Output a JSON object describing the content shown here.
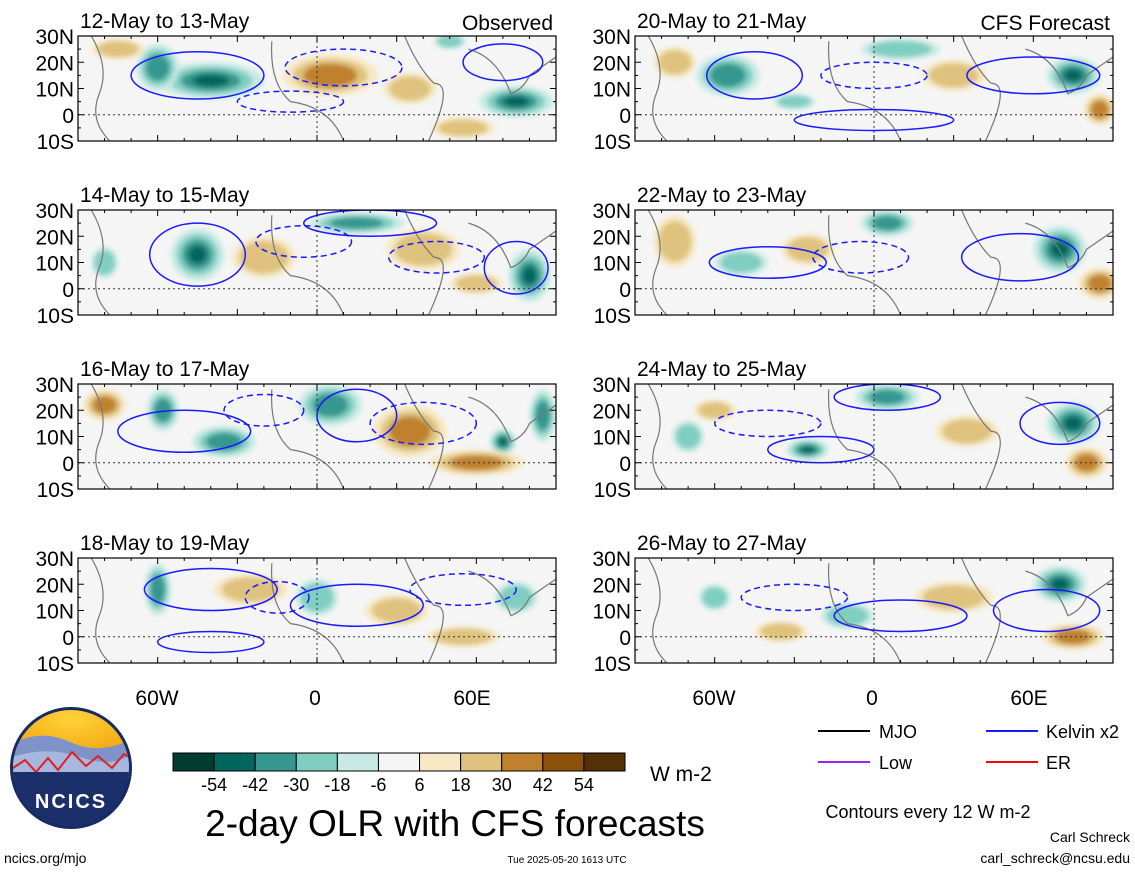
{
  "chart_data": {
    "type": "heatmap",
    "title": "2-day OLR with CFS forecasts",
    "column_labels": [
      "Observed",
      "CFS Forecast"
    ],
    "lat_ticks": [
      "30N",
      "20N",
      "10N",
      "0",
      "10S"
    ],
    "lon_ticks": [
      "60W",
      "0",
      "60E"
    ],
    "panels": [
      {
        "column": 0,
        "row": 0,
        "period": "12-May to 13-May",
        "label_key": "Observed",
        "anomalies": [
          {
            "type": "neg",
            "lon": -40,
            "lat": 13,
            "rx": 20,
            "ry": 7,
            "level": 3
          },
          {
            "type": "neg",
            "lon": -60,
            "lat": 18,
            "rx": 8,
            "ry": 9,
            "level": 2
          },
          {
            "type": "neg",
            "lon": 75,
            "lat": 5,
            "rx": 14,
            "ry": 6,
            "level": 3
          },
          {
            "type": "neg",
            "lon": 50,
            "lat": 28,
            "rx": 6,
            "ry": 3,
            "level": 1
          },
          {
            "type": "pos",
            "lon": 5,
            "lat": 15,
            "rx": 18,
            "ry": 8,
            "level": 2
          },
          {
            "type": "pos",
            "lon": 35,
            "lat": 10,
            "rx": 10,
            "ry": 6,
            "level": 1
          },
          {
            "type": "pos",
            "lon": -75,
            "lat": 25,
            "rx": 10,
            "ry": 4,
            "level": 1
          },
          {
            "type": "pos",
            "lon": 55,
            "lat": -5,
            "rx": 12,
            "ry": 4,
            "level": 1
          }
        ],
        "contours": [
          {
            "type": "solid",
            "lon": -45,
            "lat": 15,
            "rx": 25,
            "ry": 9
          },
          {
            "type": "solid",
            "lon": 70,
            "lat": 20,
            "rx": 15,
            "ry": 7
          },
          {
            "type": "dashed",
            "lon": 10,
            "lat": 18,
            "rx": 22,
            "ry": 7
          },
          {
            "type": "dashed",
            "lon": -10,
            "lat": 5,
            "rx": 20,
            "ry": 4
          }
        ]
      },
      {
        "column": 0,
        "row": 1,
        "period": "14-May to 15-May",
        "label_key": "Observed",
        "anomalies": [
          {
            "type": "neg",
            "lon": -45,
            "lat": 13,
            "rx": 10,
            "ry": 10,
            "level": 3
          },
          {
            "type": "neg",
            "lon": 80,
            "lat": 5,
            "rx": 8,
            "ry": 10,
            "level": 3
          },
          {
            "type": "neg",
            "lon": 15,
            "lat": 25,
            "rx": 18,
            "ry": 4,
            "level": 2
          },
          {
            "type": "neg",
            "lon": -80,
            "lat": 10,
            "rx": 5,
            "ry": 6,
            "level": 1
          },
          {
            "type": "pos",
            "lon": -20,
            "lat": 12,
            "rx": 12,
            "ry": 8,
            "level": 1
          },
          {
            "type": "pos",
            "lon": 40,
            "lat": 15,
            "rx": 14,
            "ry": 8,
            "level": 1
          },
          {
            "type": "pos",
            "lon": 60,
            "lat": 2,
            "rx": 10,
            "ry": 4,
            "level": 1
          }
        ],
        "contours": [
          {
            "type": "solid",
            "lon": -45,
            "lat": 13,
            "rx": 18,
            "ry": 12
          },
          {
            "type": "solid",
            "lon": 20,
            "lat": 25,
            "rx": 25,
            "ry": 5
          },
          {
            "type": "solid",
            "lon": 75,
            "lat": 8,
            "rx": 12,
            "ry": 10
          },
          {
            "type": "dashed",
            "lon": -5,
            "lat": 18,
            "rx": 18,
            "ry": 6
          },
          {
            "type": "dashed",
            "lon": 45,
            "lat": 12,
            "rx": 18,
            "ry": 6
          }
        ]
      },
      {
        "column": 0,
        "row": 2,
        "period": "16-May to 17-May",
        "label_key": "Observed",
        "anomalies": [
          {
            "type": "neg",
            "lon": -58,
            "lat": 20,
            "rx": 6,
            "ry": 8,
            "level": 2
          },
          {
            "type": "neg",
            "lon": -35,
            "lat": 8,
            "rx": 12,
            "ry": 6,
            "level": 2
          },
          {
            "type": "neg",
            "lon": 5,
            "lat": 22,
            "rx": 12,
            "ry": 8,
            "level": 2
          },
          {
            "type": "neg",
            "lon": 70,
            "lat": 8,
            "rx": 5,
            "ry": 5,
            "level": 3
          },
          {
            "type": "neg",
            "lon": 85,
            "lat": 18,
            "rx": 5,
            "ry": 10,
            "level": 2
          },
          {
            "type": "pos",
            "lon": -80,
            "lat": 22,
            "rx": 8,
            "ry": 6,
            "level": 2
          },
          {
            "type": "pos",
            "lon": 35,
            "lat": 12,
            "rx": 14,
            "ry": 10,
            "level": 2
          },
          {
            "type": "pos",
            "lon": 60,
            "lat": 0,
            "rx": 18,
            "ry": 5,
            "level": 2
          }
        ],
        "contours": [
          {
            "type": "solid",
            "lon": -50,
            "lat": 12,
            "rx": 25,
            "ry": 8
          },
          {
            "type": "solid",
            "lon": 15,
            "lat": 18,
            "rx": 15,
            "ry": 10
          },
          {
            "type": "dashed",
            "lon": 40,
            "lat": 15,
            "rx": 20,
            "ry": 8
          },
          {
            "type": "dashed",
            "lon": -20,
            "lat": 20,
            "rx": 15,
            "ry": 6
          }
        ]
      },
      {
        "column": 0,
        "row": 3,
        "period": "18-May to 19-May",
        "label_key": "Observed",
        "anomalies": [
          {
            "type": "neg",
            "lon": -60,
            "lat": 18,
            "rx": 5,
            "ry": 10,
            "level": 2
          },
          {
            "type": "neg",
            "lon": 0,
            "lat": 15,
            "rx": 8,
            "ry": 7,
            "level": 1
          },
          {
            "type": "neg",
            "lon": 75,
            "lat": 15,
            "rx": 8,
            "ry": 6,
            "level": 1
          },
          {
            "type": "pos",
            "lon": -25,
            "lat": 18,
            "rx": 14,
            "ry": 6,
            "level": 1
          },
          {
            "type": "pos",
            "lon": 30,
            "lat": 10,
            "rx": 12,
            "ry": 6,
            "level": 1
          },
          {
            "type": "pos",
            "lon": 55,
            "lat": 0,
            "rx": 14,
            "ry": 4,
            "level": 1
          }
        ],
        "contours": [
          {
            "type": "solid",
            "lon": -40,
            "lat": 18,
            "rx": 25,
            "ry": 8
          },
          {
            "type": "solid",
            "lon": 15,
            "lat": 12,
            "rx": 25,
            "ry": 8
          },
          {
            "type": "solid",
            "lon": -40,
            "lat": -2,
            "rx": 20,
            "ry": 4
          },
          {
            "type": "dashed",
            "lon": -15,
            "lat": 15,
            "rx": 12,
            "ry": 6
          },
          {
            "type": "dashed",
            "lon": 55,
            "lat": 18,
            "rx": 20,
            "ry": 6
          }
        ]
      },
      {
        "column": 1,
        "row": 0,
        "period": "20-May to 21-May",
        "label_key": "CFS Forecast",
        "anomalies": [
          {
            "type": "neg",
            "lon": -55,
            "lat": 15,
            "rx": 12,
            "ry": 8,
            "level": 2
          },
          {
            "type": "neg",
            "lon": 75,
            "lat": 15,
            "rx": 10,
            "ry": 7,
            "level": 3
          },
          {
            "type": "neg",
            "lon": -30,
            "lat": 5,
            "rx": 8,
            "ry": 3,
            "level": 1
          },
          {
            "type": "neg",
            "lon": 10,
            "lat": 25,
            "rx": 15,
            "ry": 4,
            "level": 1
          },
          {
            "type": "pos",
            "lon": -75,
            "lat": 20,
            "rx": 8,
            "ry": 6,
            "level": 1
          },
          {
            "type": "pos",
            "lon": 85,
            "lat": 2,
            "rx": 6,
            "ry": 6,
            "level": 2
          },
          {
            "type": "pos",
            "lon": 30,
            "lat": 15,
            "rx": 12,
            "ry": 6,
            "level": 1
          }
        ],
        "contours": [
          {
            "type": "solid",
            "lon": -45,
            "lat": 15,
            "rx": 18,
            "ry": 9
          },
          {
            "type": "solid",
            "lon": 60,
            "lat": 15,
            "rx": 25,
            "ry": 7
          },
          {
            "type": "solid",
            "lon": 0,
            "lat": -2,
            "rx": 30,
            "ry": 4
          },
          {
            "type": "dashed",
            "lon": 0,
            "lat": 15,
            "rx": 20,
            "ry": 5
          }
        ]
      },
      {
        "column": 1,
        "row": 1,
        "period": "22-May to 23-May",
        "label_key": "CFS Forecast",
        "anomalies": [
          {
            "type": "neg",
            "lon": 70,
            "lat": 15,
            "rx": 10,
            "ry": 9,
            "level": 3
          },
          {
            "type": "neg",
            "lon": 5,
            "lat": 25,
            "rx": 10,
            "ry": 5,
            "level": 2
          },
          {
            "type": "neg",
            "lon": -50,
            "lat": 10,
            "rx": 10,
            "ry": 5,
            "level": 1
          },
          {
            "type": "pos",
            "lon": -75,
            "lat": 18,
            "rx": 8,
            "ry": 10,
            "level": 1
          },
          {
            "type": "pos",
            "lon": 85,
            "lat": 2,
            "rx": 8,
            "ry": 6,
            "level": 2
          },
          {
            "type": "pos",
            "lon": -25,
            "lat": 15,
            "rx": 10,
            "ry": 6,
            "level": 1
          }
        ],
        "contours": [
          {
            "type": "solid",
            "lon": -40,
            "lat": 10,
            "rx": 22,
            "ry": 6
          },
          {
            "type": "solid",
            "lon": 55,
            "lat": 12,
            "rx": 22,
            "ry": 9
          },
          {
            "type": "dashed",
            "lon": -5,
            "lat": 12,
            "rx": 18,
            "ry": 6
          }
        ]
      },
      {
        "column": 1,
        "row": 2,
        "period": "24-May to 25-May",
        "label_key": "CFS Forecast",
        "anomalies": [
          {
            "type": "neg",
            "lon": -25,
            "lat": 5,
            "rx": 8,
            "ry": 4,
            "level": 3
          },
          {
            "type": "neg",
            "lon": 75,
            "lat": 15,
            "rx": 10,
            "ry": 8,
            "level": 3
          },
          {
            "type": "neg",
            "lon": 5,
            "lat": 25,
            "rx": 12,
            "ry": 5,
            "level": 2
          },
          {
            "type": "neg",
            "lon": -70,
            "lat": 10,
            "rx": 6,
            "ry": 6,
            "level": 1
          },
          {
            "type": "pos",
            "lon": 35,
            "lat": 12,
            "rx": 12,
            "ry": 6,
            "level": 1
          },
          {
            "type": "pos",
            "lon": 80,
            "lat": 0,
            "rx": 8,
            "ry": 6,
            "level": 2
          },
          {
            "type": "pos",
            "lon": -60,
            "lat": 20,
            "rx": 8,
            "ry": 4,
            "level": 1
          }
        ],
        "contours": [
          {
            "type": "solid",
            "lon": -20,
            "lat": 5,
            "rx": 20,
            "ry": 5
          },
          {
            "type": "solid",
            "lon": 70,
            "lat": 15,
            "rx": 15,
            "ry": 8
          },
          {
            "type": "solid",
            "lon": 5,
            "lat": 25,
            "rx": 20,
            "ry": 5
          },
          {
            "type": "dashed",
            "lon": -40,
            "lat": 15,
            "rx": 20,
            "ry": 5
          }
        ]
      },
      {
        "column": 1,
        "row": 3,
        "period": "26-May to 27-May",
        "label_key": "CFS Forecast",
        "anomalies": [
          {
            "type": "neg",
            "lon": 70,
            "lat": 20,
            "rx": 10,
            "ry": 7,
            "level": 3
          },
          {
            "type": "neg",
            "lon": -10,
            "lat": 8,
            "rx": 10,
            "ry": 5,
            "level": 1
          },
          {
            "type": "neg",
            "lon": -60,
            "lat": 15,
            "rx": 6,
            "ry": 5,
            "level": 1
          },
          {
            "type": "pos",
            "lon": -35,
            "lat": 2,
            "rx": 10,
            "ry": 4,
            "level": 1
          },
          {
            "type": "pos",
            "lon": 30,
            "lat": 15,
            "rx": 15,
            "ry": 6,
            "level": 1
          },
          {
            "type": "pos",
            "lon": 75,
            "lat": 0,
            "rx": 12,
            "ry": 5,
            "level": 2
          }
        ],
        "contours": [
          {
            "type": "solid",
            "lon": 10,
            "lat": 8,
            "rx": 25,
            "ry": 6
          },
          {
            "type": "solid",
            "lon": 65,
            "lat": 10,
            "rx": 20,
            "ry": 8
          },
          {
            "type": "dashed",
            "lon": -30,
            "lat": 15,
            "rx": 20,
            "ry": 5
          }
        ]
      }
    ],
    "colorbar": {
      "colors": [
        "#003c30",
        "#01665e",
        "#35978f",
        "#80cdc1",
        "#c7eae5",
        "#f5f5f5",
        "#f6e8c3",
        "#dfc27d",
        "#bf812d",
        "#8c510a",
        "#543005"
      ],
      "tick_labels": [
        "-54",
        "-42",
        "-30",
        "-18",
        "-6",
        "6",
        "18",
        "30",
        "42",
        "54"
      ],
      "unit": "W m-2"
    },
    "legend": [
      {
        "label": "MJO",
        "color": "#000000"
      },
      {
        "label": "Kelvin x2",
        "color": "#1a1aff"
      },
      {
        "label": "Low",
        "color": "#a020f0"
      },
      {
        "label": "ER",
        "color": "#ff0000"
      }
    ],
    "contour_note": "Contours every 12 W m-2"
  },
  "logo_text": "NCICS",
  "footer": {
    "url": "ncics.org/mjo",
    "timestamp": "Tue 2025-05-20 1613 UTC",
    "author": "Carl Schreck",
    "email": "carl_schreck@ncsu.edu"
  }
}
